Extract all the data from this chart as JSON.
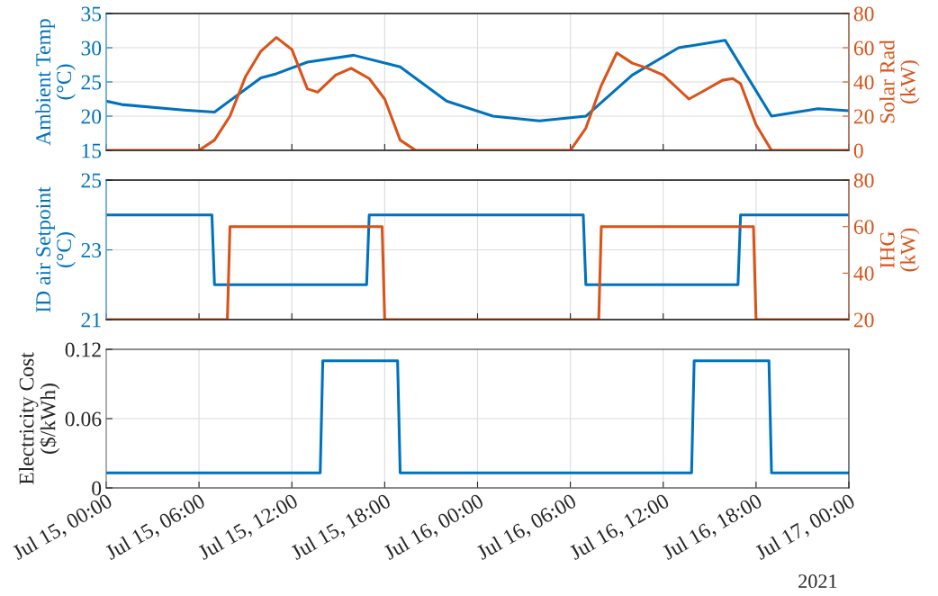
{
  "chart_data": [
    {
      "type": "line",
      "ylabel": "Ambient Temp\n(°C)",
      "y2label": "Solar Rad\n(kW)",
      "grid": true,
      "tick_labels": "y",
      "xlim": [
        "2021-07-15T00:00",
        "2021-07-17T00:00"
      ],
      "xticks": [
        {
          "value": "2021-07-15T00:00",
          "label": null
        },
        {
          "value": "2021-07-15T06:00",
          "label": null
        },
        {
          "value": "2021-07-15T12:00",
          "label": null
        },
        {
          "value": "2021-07-15T18:00",
          "label": null
        },
        {
          "value": "2021-07-16T00:00",
          "label": null
        },
        {
          "value": "2021-07-16T06:00",
          "label": null
        },
        {
          "value": "2021-07-16T12:00",
          "label": null
        },
        {
          "value": "2021-07-16T18:00",
          "label": null
        },
        {
          "value": "2021-07-17T00:00",
          "label": null
        }
      ],
      "ylim": [
        15,
        35
      ],
      "yticks": [
        15,
        20,
        25,
        30,
        35
      ],
      "y2lim": [
        0,
        80
      ],
      "y2ticks": [
        0,
        20,
        40,
        60,
        80
      ],
      "series": [
        {
          "color": "#0072bd",
          "x": [
            "2021-07-15T00:00",
            "2021-07-15T01:00",
            "2021-07-15T05:00",
            "2021-07-15T07:00",
            "2021-07-15T10:00",
            "2021-07-15T11:00",
            "2021-07-15T13:00",
            "2021-07-15T16:00",
            "2021-07-15T19:00",
            "2021-07-15T22:00",
            "2021-07-16T01:00",
            "2021-07-16T04:00",
            "2021-07-16T07:00",
            "2021-07-16T10:00",
            "2021-07-16T13:00",
            "2021-07-16T16:00",
            "2021-07-16T19:00",
            "2021-07-16T22:00",
            "2021-07-17T00:00"
          ],
          "values": [
            22.2,
            21.7,
            20.9,
            20.6,
            25.6,
            26.2,
            27.9,
            28.9,
            27.2,
            22.2,
            20.0,
            19.3,
            20.0,
            26.0,
            30.0,
            31.1,
            20.0,
            21.1,
            20.8
          ]
        },
        {
          "color": "#d95319",
          "axis": "y2",
          "x": [
            "2021-07-15T00:00",
            "2021-07-15T06:00",
            "2021-07-15T07:00",
            "2021-07-15T08:00",
            "2021-07-15T09:00",
            "2021-07-15T10:00",
            "2021-07-15T11:00",
            "2021-07-15T12:00",
            "2021-07-15T13:00",
            "2021-07-15T13:40",
            "2021-07-15T14:50",
            "2021-07-15T15:50",
            "2021-07-15T17:00",
            "2021-07-15T18:00",
            "2021-07-15T19:00",
            "2021-07-15T20:00",
            "2021-07-16T06:00",
            "2021-07-16T07:00",
            "2021-07-16T08:00",
            "2021-07-16T09:00",
            "2021-07-16T10:00",
            "2021-07-16T11:00",
            "2021-07-16T12:00",
            "2021-07-16T13:40",
            "2021-07-16T14:40",
            "2021-07-16T15:50",
            "2021-07-16T16:30",
            "2021-07-16T17:00",
            "2021-07-16T18:00",
            "2021-07-16T19:00",
            "2021-07-17T00:00"
          ],
          "values": [
            0,
            0,
            6,
            20,
            43,
            58,
            66,
            59,
            36,
            34,
            44,
            48,
            42,
            30,
            6,
            0,
            0,
            13,
            38,
            57,
            51,
            48,
            44,
            30,
            35,
            41,
            42,
            39,
            15,
            0,
            0
          ]
        }
      ]
    },
    {
      "type": "line",
      "ylabel": "ID air Setpoint\n(°C)",
      "y2label": "IHG\n(kW)",
      "grid": true,
      "tick_labels": "y",
      "xlim": [
        "2021-07-15T00:00",
        "2021-07-17T00:00"
      ],
      "xticks": [
        {
          "value": "2021-07-15T00:00",
          "label": null
        },
        {
          "value": "2021-07-15T06:00",
          "label": null
        },
        {
          "value": "2021-07-15T12:00",
          "label": null
        },
        {
          "value": "2021-07-15T18:00",
          "label": null
        },
        {
          "value": "2021-07-16T00:00",
          "label": null
        },
        {
          "value": "2021-07-16T06:00",
          "label": null
        },
        {
          "value": "2021-07-16T12:00",
          "label": null
        },
        {
          "value": "2021-07-16T18:00",
          "label": null
        },
        {
          "value": "2021-07-17T00:00",
          "label": null
        }
      ],
      "ylim": [
        21,
        25
      ],
      "yticks": [
        21,
        23,
        25
      ],
      "y2lim": [
        20,
        80
      ],
      "y2ticks": [
        20,
        40,
        60,
        80
      ],
      "series": [
        {
          "color": "#0072bd",
          "x": [
            "2021-07-15T00:00",
            "2021-07-15T06:50",
            "2021-07-15T07:00",
            "2021-07-15T16:50",
            "2021-07-15T17:00",
            "2021-07-16T06:50",
            "2021-07-16T07:00",
            "2021-07-16T16:50",
            "2021-07-16T17:00",
            "2021-07-17T00:00"
          ],
          "values": [
            24,
            24,
            22,
            22,
            24,
            24,
            22,
            22,
            24,
            24
          ]
        },
        {
          "color": "#d95319",
          "axis": "y2",
          "x": [
            "2021-07-15T00:00",
            "2021-07-15T07:50",
            "2021-07-15T08:00",
            "2021-07-15T17:50",
            "2021-07-15T18:00",
            "2021-07-16T07:50",
            "2021-07-16T08:00",
            "2021-07-16T17:50",
            "2021-07-16T18:00",
            "2021-07-17T00:00"
          ],
          "values": [
            20,
            20,
            60,
            60,
            20,
            20,
            60,
            60,
            20,
            20
          ]
        }
      ]
    },
    {
      "type": "line",
      "ylabel": "Electricity Cost\n($/kWh)",
      "grid": true,
      "annotations": [
        "2021"
      ],
      "xlim": [
        "2021-07-15T00:00",
        "2021-07-17T00:00"
      ],
      "xticks": [
        {
          "value": "2021-07-15T00:00",
          "label": "Jul 15, 00:00"
        },
        {
          "value": "2021-07-15T06:00",
          "label": "Jul 15, 06:00"
        },
        {
          "value": "2021-07-15T12:00",
          "label": "Jul 15, 12:00"
        },
        {
          "value": "2021-07-15T18:00",
          "label": "Jul 15, 18:00"
        },
        {
          "value": "2021-07-16T00:00",
          "label": "Jul 16, 00:00"
        },
        {
          "value": "2021-07-16T06:00",
          "label": "Jul 16, 06:00"
        },
        {
          "value": "2021-07-16T12:00",
          "label": "Jul 16, 12:00"
        },
        {
          "value": "2021-07-16T18:00",
          "label": "Jul 16, 18:00"
        },
        {
          "value": "2021-07-17T00:00",
          "label": "Jul 17, 00:00"
        }
      ],
      "ylim": [
        0,
        0.12
      ],
      "yticks": [
        0,
        0.06,
        0.12
      ],
      "series": [
        {
          "color": "#0072bd",
          "x": [
            "2021-07-15T00:00",
            "2021-07-15T13:50",
            "2021-07-15T14:00",
            "2021-07-15T18:50",
            "2021-07-15T19:00",
            "2021-07-16T13:50",
            "2021-07-16T14:00",
            "2021-07-16T18:50",
            "2021-07-16T19:00",
            "2021-07-17T00:00"
          ],
          "values": [
            0.013,
            0.013,
            0.11,
            0.11,
            0.013,
            0.013,
            0.11,
            0.11,
            0.013,
            0.013
          ]
        }
      ]
    }
  ]
}
